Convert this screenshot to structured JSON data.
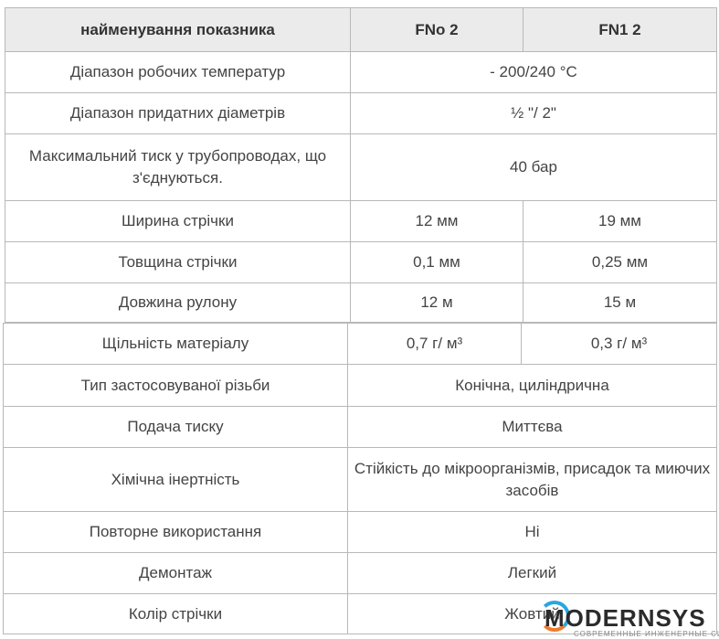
{
  "table1": {
    "headers": [
      "найменування показника",
      "FNo 2",
      "FN1 2"
    ],
    "rows": [
      {
        "label": "Діапазон робочих температур",
        "value": "- 200/240 °C"
      },
      {
        "label": "Діапазон придатних діаметрів",
        "value": "½ \"/ 2\""
      },
      {
        "label": "Максимальний тиск у трубопроводах, що з'єднуються.",
        "value": "40 бар"
      },
      {
        "label": "Ширина стрічки",
        "v1": "12 мм",
        "v2": "19 мм"
      },
      {
        "label": "Товщина стрічки",
        "v1": "0,1 мм",
        "v2": "0,25 мм"
      },
      {
        "label": "Довжина рулону",
        "v1": "12 м",
        "v2": "15 м"
      }
    ]
  },
  "table2": {
    "rows": [
      {
        "label": "Щільність матеріалу",
        "v1": "0,7 г/ м³",
        "v2": "0,3 г/ м³"
      },
      {
        "label": "Тип застосовуваної різьби",
        "value": "Конічна, циліндрична"
      },
      {
        "label": "Подача тиску",
        "value": "Миттєва"
      },
      {
        "label": "Хімічна інертність",
        "value": "Стійкість до мікроорганізмів, присадок та миючих засобів"
      },
      {
        "label": "Повторне використання",
        "value": "Ні"
      },
      {
        "label": "Демонтаж",
        "value": "Легкий"
      },
      {
        "label": "Колір стрічки",
        "value": "Жовтий"
      }
    ]
  },
  "watermark": {
    "brand": "MODERNSYS",
    "tagline": "СОВРЕМЕННЫЕ ИНЖЕНЕРНЫЕ СИСТЕМЫ",
    "colors": {
      "blue": "#2aa6e0",
      "orange": "#f07b2b"
    }
  }
}
